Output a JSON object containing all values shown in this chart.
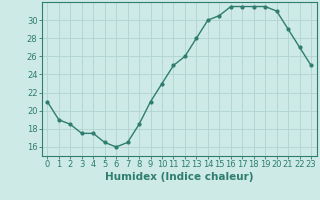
{
  "x": [
    0,
    1,
    2,
    3,
    4,
    5,
    6,
    7,
    8,
    9,
    10,
    11,
    12,
    13,
    14,
    15,
    16,
    17,
    18,
    19,
    20,
    21,
    22,
    23
  ],
  "y": [
    21.0,
    19.0,
    18.5,
    17.5,
    17.5,
    16.5,
    16.0,
    16.5,
    18.5,
    21.0,
    23.0,
    25.0,
    26.0,
    28.0,
    30.0,
    30.5,
    31.5,
    31.5,
    31.5,
    31.5,
    31.0,
    29.0,
    27.0,
    25.0
  ],
  "line_color": "#2e7d6e",
  "marker": "o",
  "marker_size": 2.0,
  "bg_color": "#ceeae7",
  "grid_color": "#b0d4d0",
  "xlabel": "Humidex (Indice chaleur)",
  "xlim": [
    -0.5,
    23.5
  ],
  "ylim": [
    15.0,
    32.0
  ],
  "yticks": [
    16,
    18,
    20,
    22,
    24,
    26,
    28,
    30
  ],
  "xticks": [
    0,
    1,
    2,
    3,
    4,
    5,
    6,
    7,
    8,
    9,
    10,
    11,
    12,
    13,
    14,
    15,
    16,
    17,
    18,
    19,
    20,
    21,
    22,
    23
  ],
  "axis_color": "#2e7d6e",
  "tick_color": "#2e7d6e",
  "label_fontsize": 7.5,
  "tick_fontsize": 6.0
}
